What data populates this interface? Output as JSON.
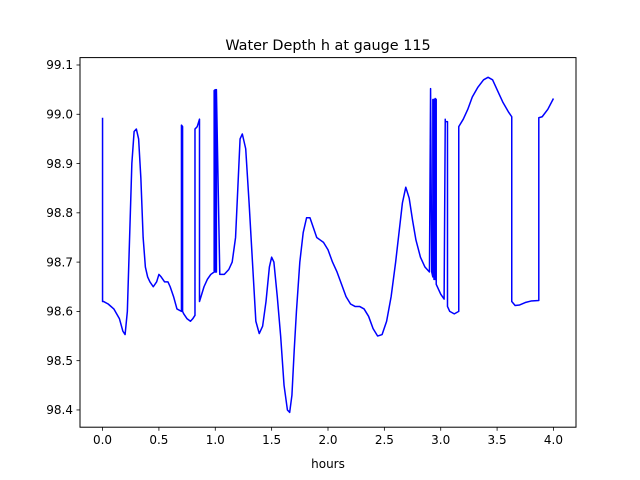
{
  "chart_data": {
    "type": "line",
    "title": "Water Depth h at gauge 115",
    "xlabel": "hours",
    "ylabel": "",
    "xlim": [
      -0.2,
      4.2
    ],
    "ylim": [
      98.365,
      99.115
    ],
    "xticks": [
      0.0,
      0.5,
      1.0,
      1.5,
      2.0,
      2.5,
      3.0,
      3.5,
      4.0
    ],
    "xtick_labels": [
      "0.0",
      "0.5",
      "1.0",
      "1.5",
      "2.0",
      "2.5",
      "3.0",
      "3.5",
      "4.0"
    ],
    "yticks": [
      98.4,
      98.5,
      98.6,
      98.7,
      98.8,
      98.9,
      99.0,
      99.1
    ],
    "ytick_labels": [
      "98.4",
      "98.5",
      "98.6",
      "98.7",
      "98.8",
      "98.9",
      "99.0",
      "99.1"
    ],
    "grid": false,
    "series": [
      {
        "color": "#0000ff",
        "x": [
          0.0,
          0.0,
          0.01,
          0.05,
          0.1,
          0.15,
          0.18,
          0.2,
          0.22,
          0.24,
          0.26,
          0.28,
          0.3,
          0.32,
          0.34,
          0.36,
          0.38,
          0.4,
          0.42,
          0.45,
          0.48,
          0.5,
          0.52,
          0.55,
          0.58,
          0.6,
          0.63,
          0.66,
          0.7,
          0.7,
          0.71,
          0.71,
          0.72,
          0.75,
          0.78,
          0.8,
          0.82,
          0.82,
          0.84,
          0.86,
          0.86,
          0.88,
          0.9,
          0.93,
          0.96,
          0.99,
          0.99,
          1.0,
          1.0,
          1.01,
          1.01,
          1.04,
          1.08,
          1.12,
          1.15,
          1.18,
          1.2,
          1.22,
          1.24,
          1.27,
          1.3,
          1.33,
          1.36,
          1.39,
          1.42,
          1.45,
          1.48,
          1.5,
          1.52,
          1.55,
          1.58,
          1.61,
          1.64,
          1.66,
          1.68,
          1.7,
          1.72,
          1.75,
          1.78,
          1.81,
          1.84,
          1.87,
          1.9,
          1.93,
          1.96,
          2.0,
          2.04,
          2.08,
          2.12,
          2.16,
          2.2,
          2.24,
          2.28,
          2.32,
          2.36,
          2.4,
          2.44,
          2.48,
          2.52,
          2.56,
          2.6,
          2.63,
          2.66,
          2.69,
          2.72,
          2.75,
          2.78,
          2.82,
          2.86,
          2.9,
          2.91,
          2.91,
          2.92,
          2.93,
          2.93,
          2.94,
          2.94,
          2.95,
          2.95,
          2.96,
          2.96,
          3.0,
          3.03,
          3.04,
          3.04,
          3.06,
          3.06,
          3.08,
          3.12,
          3.16,
          3.16,
          3.2,
          3.24,
          3.28,
          3.33,
          3.38,
          3.42,
          3.46,
          3.5,
          3.55,
          3.6,
          3.63,
          3.63,
          3.66,
          3.7,
          3.75,
          3.8,
          3.87,
          3.87,
          3.9,
          3.95,
          4.0
        ],
        "y": [
          98.993,
          98.62,
          98.62,
          98.615,
          98.605,
          98.585,
          98.56,
          98.553,
          98.6,
          98.75,
          98.9,
          98.965,
          98.97,
          98.95,
          98.87,
          98.75,
          98.69,
          98.67,
          98.66,
          98.65,
          98.66,
          98.675,
          98.67,
          98.66,
          98.66,
          98.65,
          98.63,
          98.605,
          98.6,
          98.978,
          98.975,
          98.6,
          98.595,
          98.585,
          98.58,
          98.585,
          98.592,
          98.97,
          98.975,
          98.99,
          98.62,
          98.635,
          98.65,
          98.665,
          98.675,
          98.68,
          99.048,
          99.05,
          98.68,
          98.68,
          99.05,
          98.675,
          98.675,
          98.685,
          98.7,
          98.75,
          98.85,
          98.95,
          98.96,
          98.93,
          98.82,
          98.7,
          98.58,
          98.555,
          98.57,
          98.62,
          98.69,
          98.71,
          98.7,
          98.63,
          98.55,
          98.45,
          98.4,
          98.395,
          98.43,
          98.52,
          98.6,
          98.7,
          98.76,
          98.79,
          98.79,
          98.77,
          98.75,
          98.745,
          98.74,
          98.725,
          98.7,
          98.68,
          98.655,
          98.63,
          98.615,
          98.61,
          98.61,
          98.605,
          98.59,
          98.565,
          98.55,
          98.553,
          98.58,
          98.63,
          98.7,
          98.76,
          98.82,
          98.852,
          98.83,
          98.785,
          98.745,
          98.71,
          98.69,
          98.68,
          99.052,
          99.048,
          98.68,
          98.67,
          99.03,
          99.03,
          98.665,
          98.665,
          99.032,
          99.03,
          98.655,
          98.635,
          98.625,
          98.99,
          98.985,
          98.985,
          98.61,
          98.6,
          98.595,
          98.6,
          98.975,
          98.99,
          99.01,
          99.035,
          99.055,
          99.07,
          99.075,
          99.07,
          99.05,
          99.025,
          99.005,
          98.995,
          98.62,
          98.612,
          98.613,
          98.618,
          98.621,
          98.622,
          98.993,
          98.995,
          99.01,
          99.032
        ]
      }
    ]
  }
}
